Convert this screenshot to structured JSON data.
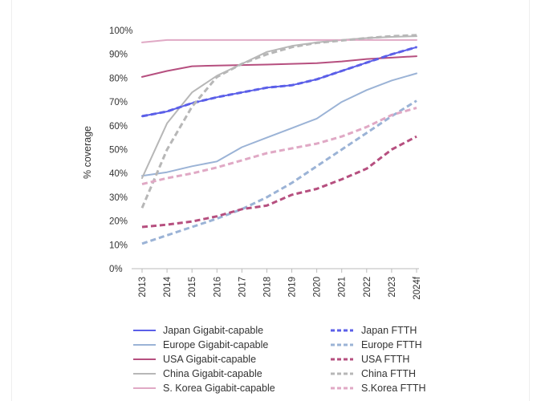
{
  "chart_data": {
    "type": "line",
    "title": "",
    "xlabel": "",
    "ylabel": "% coverage",
    "ylim": [
      0,
      100
    ],
    "y_ticks": [
      "0%",
      "10%",
      "20%",
      "30%",
      "40%",
      "50%",
      "60%",
      "70%",
      "80%",
      "90%",
      "100%"
    ],
    "categories": [
      "2013",
      "2014",
      "2015",
      "2016",
      "2017",
      "2018",
      "2019",
      "2020",
      "2021",
      "2022",
      "2023",
      "2024f"
    ],
    "grid": false,
    "legend_position": "bottom",
    "series": [
      {
        "name": "Japan Gigabit-capable",
        "color": "#5b5fe8",
        "dashed": false,
        "values": [
          64,
          66,
          69.5,
          72,
          74,
          76,
          77,
          79.5,
          83,
          86.5,
          90,
          93
        ]
      },
      {
        "name": "Europe Gigabit-capable",
        "color": "#9bb3d6",
        "dashed": false,
        "values": [
          39,
          40.5,
          43,
          45,
          51,
          55,
          59,
          63,
          70,
          75,
          79,
          82
        ]
      },
      {
        "name": "USA Gigabit-capable",
        "color": "#b64f7f",
        "dashed": false,
        "values": [
          80.5,
          83,
          85,
          85.3,
          85.5,
          85.7,
          86,
          86.3,
          87,
          88,
          88.6,
          89.2
        ]
      },
      {
        "name": "China Gigabit-capable",
        "color": "#b7b7b7",
        "dashed": false,
        "values": [
          38,
          61,
          74,
          81,
          86,
          91,
          93.5,
          95,
          96,
          96.8,
          97.3,
          97.6
        ]
      },
      {
        "name": "S. Korea Gigabit-capable",
        "color": "#e0a9c5",
        "dashed": false,
        "values": [
          95,
          96,
          96,
          96,
          96,
          96,
          96,
          96,
          96,
          96,
          96,
          96
        ]
      },
      {
        "name": "Japan FTTH",
        "color": "#5b5fe8",
        "dashed": true,
        "values": [
          64,
          66,
          69.5,
          72,
          74,
          76,
          77,
          79.5,
          83,
          86.5,
          90,
          93
        ]
      },
      {
        "name": "Europe FTTH",
        "color": "#9bb3d6",
        "dashed": true,
        "values": [
          10.5,
          14,
          17.5,
          21,
          25,
          30,
          36,
          43,
          50,
          57,
          64,
          70.5
        ]
      },
      {
        "name": "USA FTTH",
        "color": "#b64f7f",
        "dashed": true,
        "values": [
          17.5,
          18.5,
          19.8,
          22,
          25,
          26.5,
          31,
          33.5,
          37.5,
          42,
          50,
          55.5
        ]
      },
      {
        "name": "China FTTH",
        "color": "#b7b7b7",
        "dashed": true,
        "values": [
          25.5,
          50,
          68,
          80.5,
          86,
          90,
          93,
          94.8,
          95.8,
          96.8,
          97.6,
          98
        ]
      },
      {
        "name": "S.Korea FTTH",
        "color": "#e0a9c5",
        "dashed": true,
        "values": [
          35.5,
          38,
          40,
          42.5,
          45.5,
          48.5,
          50.5,
          52.5,
          55.5,
          59.5,
          64.5,
          67.5
        ]
      }
    ]
  }
}
